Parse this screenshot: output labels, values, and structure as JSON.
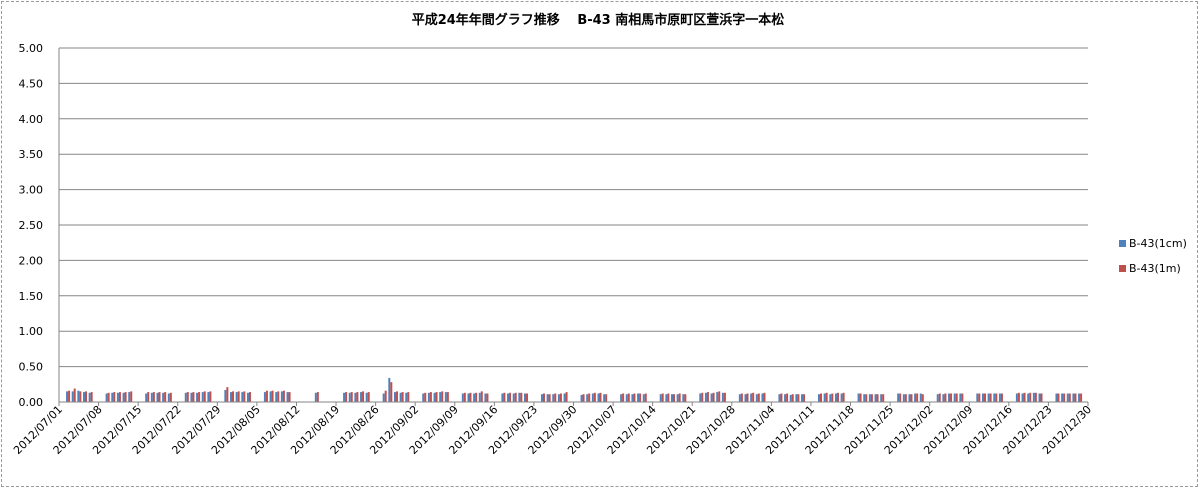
{
  "chart_data": {
    "type": "bar",
    "title": "平成24年年間グラフ推移　 B-43 南相馬市原町区萱浜字一本松",
    "xlabel": "",
    "ylabel": "",
    "ylim": [
      0,
      5
    ],
    "yticks": [
      "5.00",
      "4.50",
      "4.00",
      "3.50",
      "3.00",
      "2.50",
      "2.00",
      "1.50",
      "1.00",
      "0.50",
      "0.00"
    ],
    "ytick_values": [
      5,
      4.5,
      4,
      3.5,
      3,
      2.5,
      2,
      1.5,
      1,
      0.5,
      0
    ],
    "categories": [
      "2012/07/01",
      "2012/07/08",
      "2012/07/15",
      "2012/07/22",
      "2012/07/29",
      "2012/08/05",
      "2012/08/12",
      "2012/08/19",
      "2012/08/26",
      "2012/09/02",
      "2012/09/09",
      "2012/09/16",
      "2012/09/23",
      "2012/09/30",
      "2012/10/07",
      "2012/10/14",
      "2012/10/21",
      "2012/10/28",
      "2012/11/04",
      "2012/11/11",
      "2012/11/18",
      "2012/11/25",
      "2012/12/02",
      "2012/12/09",
      "2012/12/16",
      "2012/12/23",
      "2012/12/30"
    ],
    "grid": true,
    "legend_position": "right",
    "series": [
      {
        "name": "B-43(1cm)",
        "color": "#4f81bd",
        "values": [
          [
            0.15,
            0.15,
            0.16,
            0.14,
            0.13
          ],
          [
            0.12,
            0.13,
            0.13,
            0.13,
            0.14
          ],
          [
            0.12,
            0.13,
            0.13,
            0.13,
            0.12
          ],
          [
            0.13,
            0.13,
            0.13,
            0.14,
            0.14
          ],
          [
            0.17,
            0.14,
            0.14,
            0.14,
            0.13
          ],
          [
            0.14,
            0.15,
            0.14,
            0.15,
            0.14
          ],
          [
            null,
            null,
            0.13,
            null,
            null
          ],
          [
            0.13,
            0.13,
            0.13,
            0.14,
            0.13
          ],
          [
            0.12,
            0.34,
            0.14,
            0.13,
            0.13
          ],
          [
            0.12,
            0.13,
            0.13,
            0.14,
            0.14
          ],
          [
            0.12,
            0.12,
            0.12,
            0.13,
            0.12
          ],
          [
            0.12,
            0.12,
            0.12,
            0.13,
            0.12
          ],
          [
            0.11,
            0.11,
            0.11,
            0.11,
            0.12
          ],
          [
            0.1,
            0.11,
            0.12,
            0.12,
            0.11
          ],
          [
            0.11,
            0.11,
            0.11,
            0.12,
            0.11
          ],
          [
            0.11,
            0.11,
            0.11,
            0.11,
            0.11
          ],
          [
            0.12,
            0.13,
            0.12,
            0.14,
            0.13
          ],
          [
            0.11,
            0.11,
            0.12,
            0.11,
            0.12
          ],
          [
            0.11,
            0.11,
            0.1,
            0.11,
            0.11
          ],
          [
            0.11,
            0.12,
            0.11,
            0.12,
            0.12
          ],
          [
            0.12,
            0.11,
            0.11,
            0.11,
            0.11
          ],
          [
            0.12,
            0.11,
            0.11,
            0.12,
            0.12
          ],
          [
            0.11,
            0.11,
            0.12,
            0.12,
            0.12
          ],
          [
            0.12,
            0.12,
            0.12,
            0.12,
            0.12
          ],
          [
            0.12,
            0.12,
            0.12,
            0.13,
            0.12
          ],
          [
            0.12,
            0.12,
            0.12,
            0.12,
            0.12
          ],
          [
            null,
            null,
            null,
            null,
            null
          ]
        ]
      },
      {
        "name": "B-43(1m)",
        "color": "#c0504d",
        "values": [
          [
            0.16,
            0.19,
            0.15,
            0.15,
            0.14
          ],
          [
            0.13,
            0.14,
            0.14,
            0.14,
            0.15
          ],
          [
            0.14,
            0.14,
            0.14,
            0.14,
            0.13
          ],
          [
            0.14,
            0.14,
            0.14,
            0.15,
            0.15
          ],
          [
            0.21,
            0.15,
            0.15,
            0.15,
            0.14
          ],
          [
            0.16,
            0.16,
            0.15,
            0.16,
            0.14
          ],
          [
            null,
            null,
            0.14,
            null,
            null
          ],
          [
            0.14,
            0.14,
            0.14,
            0.15,
            0.14
          ],
          [
            0.16,
            0.28,
            0.15,
            0.14,
            0.14
          ],
          [
            0.13,
            0.14,
            0.14,
            0.15,
            0.14
          ],
          [
            0.13,
            0.13,
            0.13,
            0.15,
            0.12
          ],
          [
            0.13,
            0.13,
            0.13,
            0.13,
            0.12
          ],
          [
            0.12,
            0.11,
            0.12,
            0.12,
            0.14
          ],
          [
            0.11,
            0.12,
            0.13,
            0.13,
            0.11
          ],
          [
            0.12,
            0.12,
            0.12,
            0.12,
            0.12
          ],
          [
            0.12,
            0.12,
            0.11,
            0.12,
            0.11
          ],
          [
            0.13,
            0.14,
            0.13,
            0.15,
            0.13
          ],
          [
            0.12,
            0.12,
            0.13,
            0.12,
            0.13
          ],
          [
            0.12,
            0.12,
            0.11,
            0.11,
            0.11
          ],
          [
            0.12,
            0.13,
            0.12,
            0.13,
            0.13
          ],
          [
            0.12,
            0.11,
            0.11,
            0.11,
            0.11
          ],
          [
            0.12,
            0.11,
            0.11,
            0.12,
            0.11
          ],
          [
            0.12,
            0.12,
            0.12,
            0.12,
            0.12
          ],
          [
            0.12,
            0.12,
            0.12,
            0.12,
            0.12
          ],
          [
            0.13,
            0.13,
            0.13,
            0.13,
            0.12
          ],
          [
            0.12,
            0.12,
            0.12,
            0.12,
            0.12
          ],
          [
            null,
            null,
            null,
            null,
            null
          ]
        ]
      }
    ]
  }
}
